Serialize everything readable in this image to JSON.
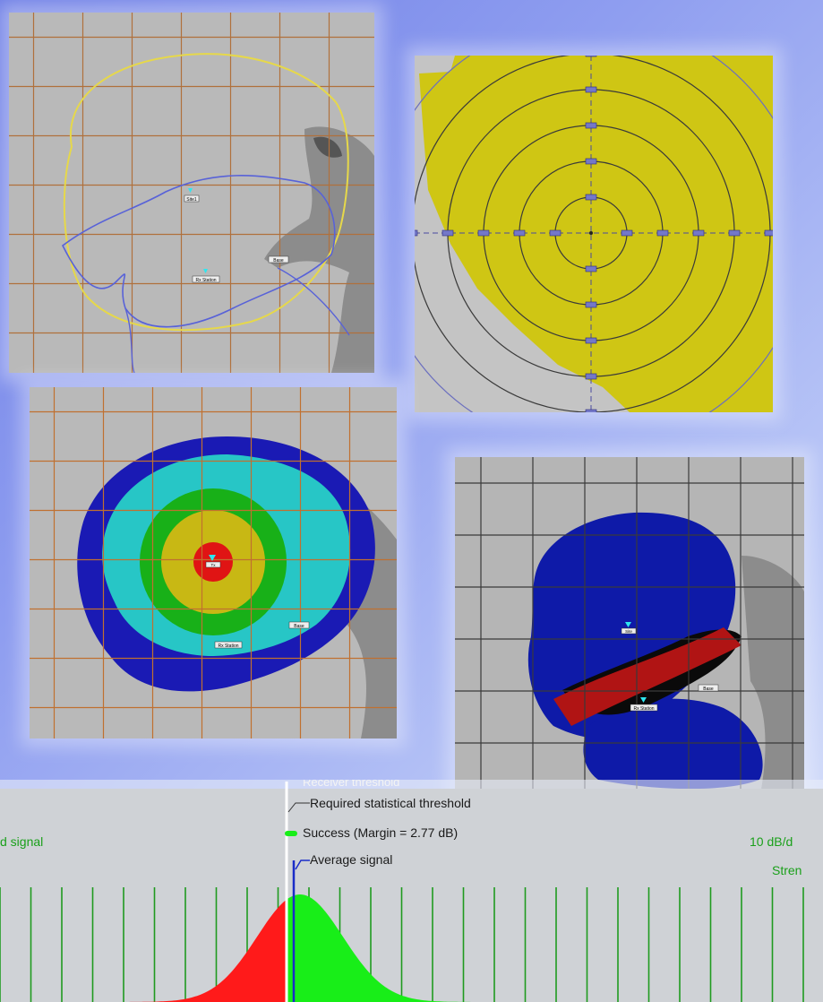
{
  "maps": {
    "p1": {
      "sites": [
        {
          "label": "Site1"
        },
        {
          "label": "Rx Station"
        },
        {
          "label": "Base"
        }
      ]
    },
    "p2": {
      "range_rings": [
        "",
        "",
        "",
        "",
        "",
        ""
      ]
    },
    "p3": {
      "sites": [
        {
          "label": "Tx"
        },
        {
          "label": "Rx Station"
        },
        {
          "label": "Base"
        }
      ]
    },
    "p4": {
      "sites": [
        {
          "label": "Site"
        },
        {
          "label": "Rx Station"
        },
        {
          "label": "Base"
        }
      ]
    }
  },
  "histogram": {
    "legend": {
      "receiver_threshold": "Receiver threshold",
      "required_threshold": "Required statistical threshold",
      "success": "Success (Margin = 2.77 dB)",
      "average": "Average signal"
    },
    "left_label": "d signal",
    "scale_label": "10 dB/d",
    "strength_label": "Stren",
    "colors": {
      "fail": "#ff1a1a",
      "success": "#18ee18",
      "threshold": "#ffffff",
      "average": "#1a2cc8"
    },
    "mean": 335,
    "sigma": 48
  }
}
